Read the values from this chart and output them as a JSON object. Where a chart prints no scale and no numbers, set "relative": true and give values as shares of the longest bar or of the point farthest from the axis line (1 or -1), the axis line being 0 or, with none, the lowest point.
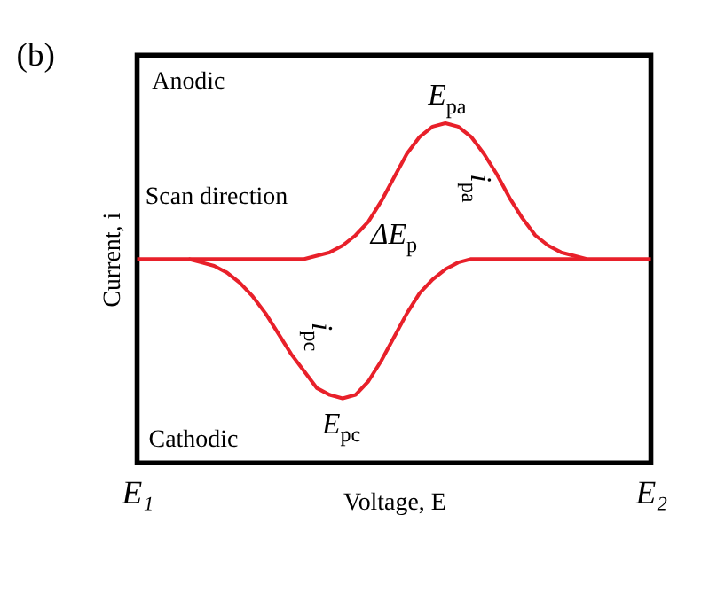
{
  "chart_data": {
    "type": "line",
    "title": "(b)",
    "xlabel": "Voltage, E",
    "ylabel": "Current, i",
    "relative": true,
    "legend": false,
    "grid": false,
    "marker": "none",
    "line_style": "solid",
    "categories": [
      "E₁",
      null,
      null,
      null,
      null,
      null,
      null,
      null,
      null,
      null,
      null,
      null,
      null,
      null,
      null,
      null,
      null,
      null,
      null,
      null,
      null,
      null,
      null,
      null,
      null,
      null,
      null,
      null,
      null,
      null,
      null,
      null,
      null,
      null,
      null,
      null,
      null,
      null,
      null,
      null,
      "E₂"
    ],
    "series": [
      {
        "color": "#e8202a",
        "values": [
          0.6,
          0.6,
          0.6,
          0.6,
          0.6,
          0.6,
          0.6,
          0.6,
          0.6,
          0.6,
          0.6,
          0.6,
          0.6,
          0.6,
          0.61,
          0.62,
          0.64,
          0.67,
          0.71,
          0.77,
          0.84,
          0.91,
          0.96,
          0.99,
          1,
          0.99,
          0.96,
          0.91,
          0.85,
          0.78,
          0.72,
          0.67,
          0.64,
          0.62,
          0.61,
          0.6,
          0.6,
          0.6,
          0.6,
          0.6,
          0.6
        ]
      },
      {
        "color": "#e8202a",
        "values": [
          null,
          null,
          null,
          null,
          0.6,
          0.59,
          0.58,
          0.56,
          0.53,
          0.49,
          0.44,
          0.38,
          0.32,
          0.27,
          0.22,
          0.2,
          0.19,
          0.2,
          0.24,
          0.3,
          0.37,
          0.44,
          0.5,
          0.54,
          0.57,
          0.59,
          0.6,
          0.6,
          0.6,
          0.6,
          0.6,
          0.6,
          0.6,
          0.6,
          0.6,
          0.6,
          null,
          null,
          null,
          null,
          null
        ]
      }
    ],
    "annotations": [
      "Anodic",
      "Scan direction",
      "Cathodic",
      "E$_{pa}$",
      "i$_{pa}$",
      "ΔE$_{p}$",
      "i$_{pc}$",
      "E$_{pc}$"
    ]
  }
}
